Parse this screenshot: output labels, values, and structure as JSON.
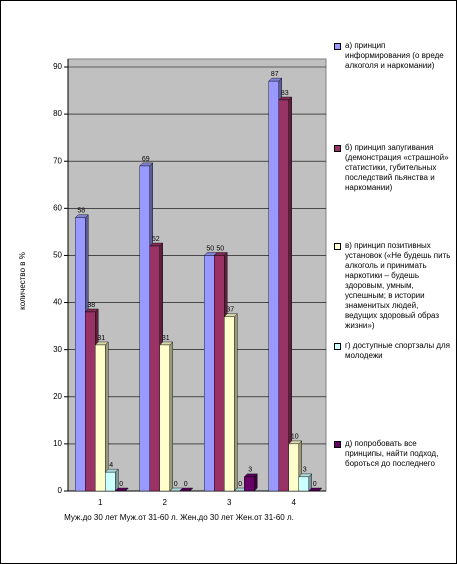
{
  "chart_data": {
    "type": "bar",
    "categories": [
      "1",
      "2",
      "3",
      "4"
    ],
    "x_label": "Муж.до 30 лет  Муж.от 31-60 л.  Жен.до 30 лет  Жен.от 31-60 л.",
    "y_label": "количество в %",
    "ylim": [
      0,
      90
    ],
    "yticks": [
      0,
      10,
      20,
      30,
      40,
      50,
      60,
      70,
      80,
      90
    ],
    "grid": true,
    "legend": "right",
    "series": [
      {
        "name": "а) принцип информирования (о вреде алкоголя и наркомании)",
        "color": "#9999ff",
        "values": [
          58,
          69,
          50,
          87
        ]
      },
      {
        "name": "б) принцип запугивания (демонстрация «страшной» статистики, губительных последствий пьянства и наркомании)",
        "color": "#993366",
        "values": [
          38,
          52,
          50,
          83
        ]
      },
      {
        "name": "в) принцип позитивных установок («Не будешь пить алкоголь и принимать наркотики – будешь здоровым, умным, успешным; в истории знаменитых людей, ведущих здоровый образ жизни»)",
        "color": "#ffffcc",
        "values": [
          31,
          31,
          37,
          10
        ]
      },
      {
        "name": "г) доступные спортзалы для молодежи",
        "color": "#ccffff",
        "values": [
          4,
          0,
          0,
          3
        ]
      },
      {
        "name": "д) попробовать все принципы, найти подход, бороться до последнего",
        "color": "#660066",
        "values": [
          0,
          0,
          3,
          0
        ]
      }
    ]
  }
}
